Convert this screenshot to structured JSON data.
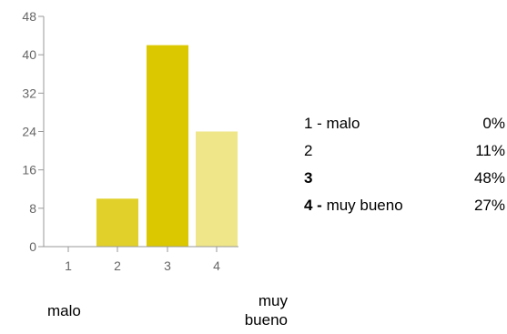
{
  "colors": {
    "bar_1": "#e2d02a",
    "bar_2": "#e2d02a",
    "bar_3": "#dcc800",
    "bar_4": "#efe589",
    "axis": "#999999",
    "tick_text": "#666666"
  },
  "chart_data": {
    "type": "bar",
    "title": "",
    "xlabel": "",
    "ylabel": "",
    "categories": [
      "1",
      "2",
      "3",
      "4"
    ],
    "values": [
      0,
      10,
      42,
      24
    ],
    "ylim": [
      0,
      48
    ],
    "yticks": [
      "0",
      "8",
      "16",
      "24",
      "32",
      "40",
      "48"
    ],
    "grid": false,
    "scale_low_label": "malo",
    "scale_high_label_line1": "muy",
    "scale_high_label_line2": "bueno"
  },
  "legend": [
    {
      "prefix": "1 - malo",
      "suffix": "",
      "percent": "0%"
    },
    {
      "prefix": "2",
      "suffix": "",
      "percent": "11%"
    },
    {
      "prefix": "3",
      "suffix": "",
      "percent": "48%"
    },
    {
      "prefix": "4 - ",
      "suffix": "muy bueno",
      "percent": "27%"
    }
  ]
}
